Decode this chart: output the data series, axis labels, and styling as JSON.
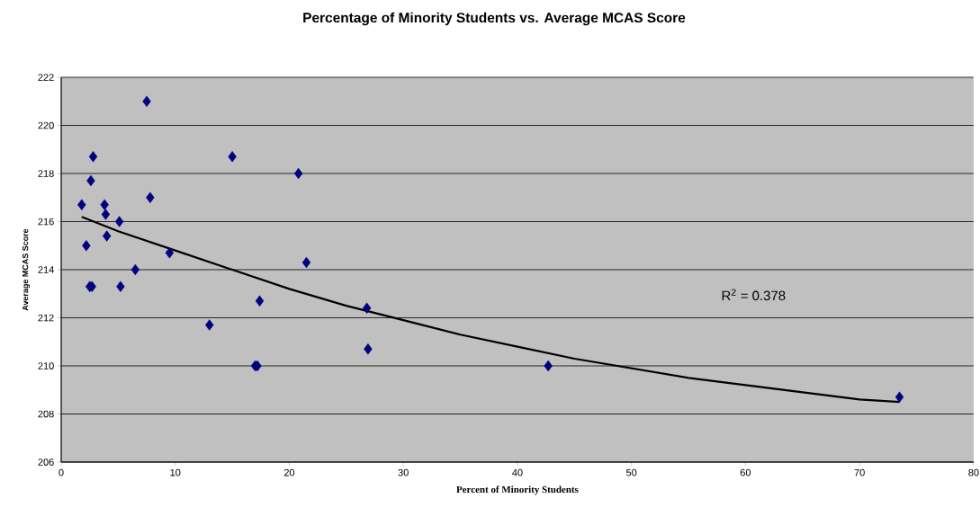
{
  "chart_data": {
    "type": "scatter",
    "title": "Percentage of Minority Students vs. Average MCAS Score",
    "xlabel": "Percent of Minority Students",
    "ylabel": "Average MCAS Score",
    "xlim": [
      0,
      80
    ],
    "xticks": [
      0,
      10,
      20,
      30,
      40,
      50,
      60,
      70,
      80
    ],
    "ylim": [
      206,
      222
    ],
    "yticks": [
      206,
      208,
      210,
      212,
      214,
      216,
      218,
      220,
      222
    ],
    "grid": "y",
    "annotations": [
      "R$^{2}$ = 0.378"
    ],
    "series": [
      {
        "color": "#000080",
        "marker": "diamond",
        "x": [
          1.8,
          2.2,
          2.5,
          2.6,
          2.7,
          2.8,
          3.8,
          3.9,
          4.0,
          5.1,
          5.2,
          6.5,
          7.5,
          7.8,
          9.5,
          13.0,
          15.0,
          17.0,
          17.2,
          17.4,
          20.8,
          21.5,
          26.8,
          26.9,
          42.7,
          73.5
        ],
        "values": [
          216.7,
          215.0,
          213.3,
          217.7,
          213.3,
          218.7,
          216.7,
          216.3,
          215.4,
          216.0,
          213.3,
          214.0,
          221.0,
          217.0,
          214.7,
          211.7,
          218.7,
          210.0,
          210.0,
          212.7,
          218.0,
          214.3,
          212.4,
          210.7,
          210.0,
          208.7
        ]
      },
      {
        "type": "line",
        "color": "#000000",
        "marker": "none",
        "x": [
          1.8,
          5,
          10,
          15,
          20,
          25,
          30,
          35,
          40,
          45,
          50,
          55,
          60,
          65,
          70,
          73.5
        ],
        "values": [
          216.2,
          215.6,
          214.8,
          214.0,
          213.2,
          212.5,
          211.9,
          211.3,
          210.8,
          210.3,
          209.9,
          209.5,
          209.2,
          208.9,
          208.6,
          208.5
        ]
      }
    ]
  }
}
